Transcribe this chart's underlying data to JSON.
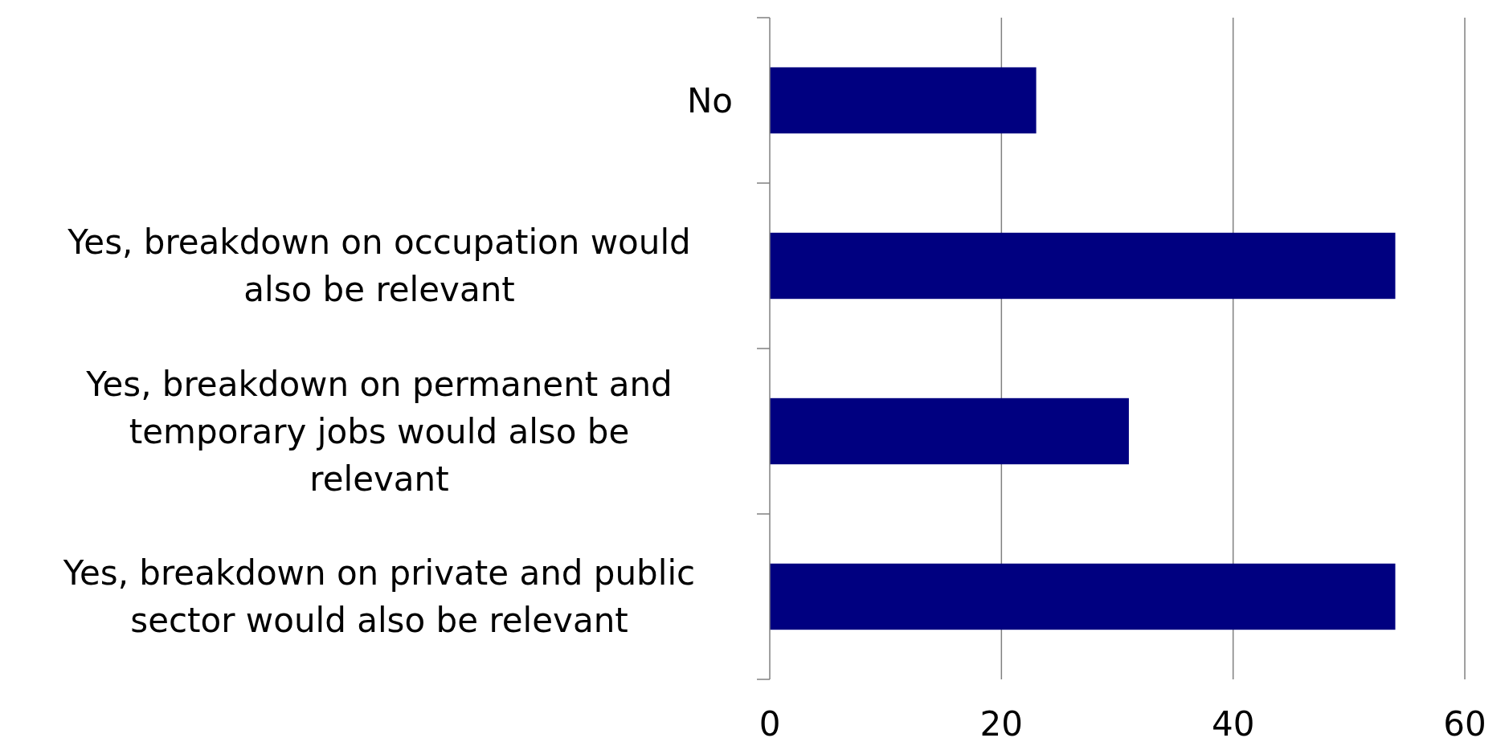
{
  "chart_data": {
    "type": "bar",
    "orientation": "horizontal",
    "categories": [
      "No",
      "Yes, breakdown on occupation would also be relevant",
      "Yes, breakdown on permanent and temporary jobs would also be relevant",
      "Yes, breakdown on private and public sector would also be relevant"
    ],
    "values": [
      23,
      54,
      31,
      54
    ],
    "color": "#000080",
    "xlim": [
      0,
      60
    ],
    "xticks": [
      0,
      20,
      40,
      60
    ],
    "grid": "x"
  }
}
